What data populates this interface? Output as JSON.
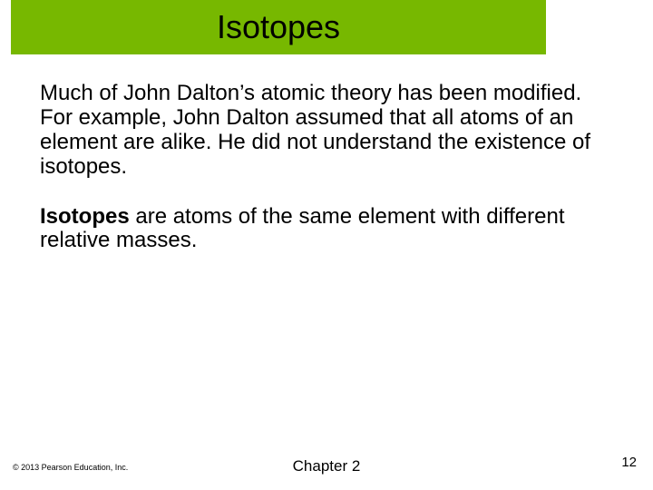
{
  "slide": {
    "title": "Isotopes",
    "title_bar_color": "#77b800",
    "title_color": "#000000",
    "title_fontsize": 36,
    "body_fontsize": 24,
    "body_color": "#000000",
    "background_color": "#ffffff",
    "paragraphs": [
      {
        "runs": [
          {
            "text": "Much of John Dalton’s atomic theory has been modified. For example, John Dalton assumed that all atoms of an element are alike. He did not understand the existence of isotopes.",
            "bold": false
          }
        ]
      },
      {
        "runs": [
          {
            "text": "Isotopes",
            "bold": true
          },
          {
            "text": " are atoms of the same element with different relative masses.",
            "bold": false
          }
        ]
      }
    ],
    "copyright": "© 2013 Pearson Education, Inc.",
    "chapter": "Chapter 2",
    "page_number": "12"
  }
}
